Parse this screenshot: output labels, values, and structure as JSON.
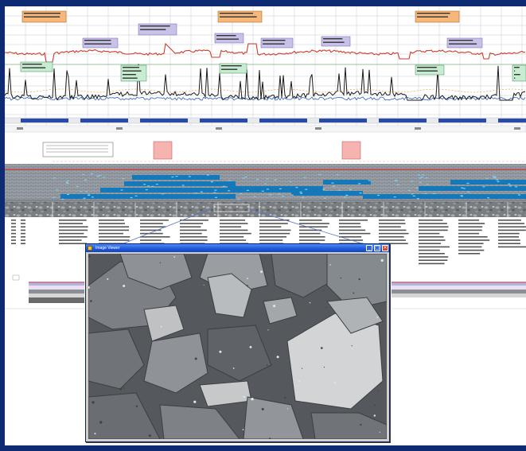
{
  "window": {
    "title": "Image Viewer",
    "minimize_glyph": "_",
    "maximize_glyph": "□",
    "close_glyph": "✕"
  },
  "colors": {
    "frame": "#0d2a72",
    "gas_curve": "#d03a2a",
    "rop_curve": "#1a1a1a",
    "rop_curve_blue": "#2b5fbf",
    "lithology_blue": "#1578b8",
    "lithology_grey": "#8a8f96",
    "callout_orange": "#f6b87a",
    "callout_purple": "#c8c2e8",
    "callout_green": "#c8ecd2",
    "callout_pink": "#f7b3b0",
    "titlebar_blue": "#1d56d8",
    "close_red": "#d9442a"
  },
  "icons": [
    "window-app-icon",
    "minimize-icon",
    "maximize-icon",
    "close-icon"
  ]
}
